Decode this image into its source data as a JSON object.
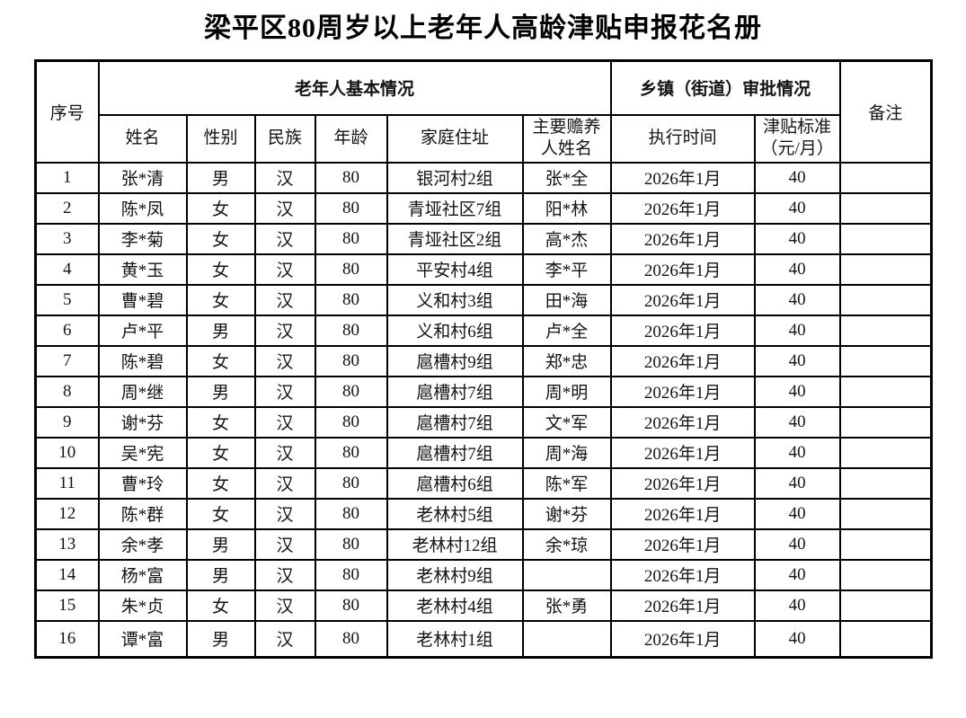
{
  "page": {
    "background": "#ffffff",
    "text_color": "#141414",
    "border_color": "#000000"
  },
  "title": "梁平区80周岁以上老年人高龄津贴申报花名册",
  "table": {
    "header": {
      "serial": "序号",
      "basic_group": "老年人基本情况",
      "approval_group": "乡镇（街道）审批情况",
      "remark": "备注",
      "columns": [
        {
          "id": "name",
          "label": "姓名"
        },
        {
          "id": "gender",
          "label": "性别"
        },
        {
          "id": "ethnicity",
          "label": "民族"
        },
        {
          "id": "age",
          "label": "年龄"
        },
        {
          "id": "address",
          "label": "家庭住址"
        },
        {
          "id": "supporter",
          "label": "主要赡养\n人姓名"
        },
        {
          "id": "exec_time",
          "label": "执行时间"
        },
        {
          "id": "standard",
          "label": "津贴标准\n（元/月）"
        }
      ]
    },
    "rows": [
      {
        "no": "1",
        "name": "张*清",
        "gender": "男",
        "ethnicity": "汉",
        "age": "80",
        "address": "银河村2组",
        "supporter": "张*全",
        "exec_time": "2026年1月",
        "standard": "40",
        "remark": ""
      },
      {
        "no": "2",
        "name": "陈*凤",
        "gender": "女",
        "ethnicity": "汉",
        "age": "80",
        "address": "青垭社区7组",
        "supporter": "阳*林",
        "exec_time": "2026年1月",
        "standard": "40",
        "remark": ""
      },
      {
        "no": "3",
        "name": "李*菊",
        "gender": "女",
        "ethnicity": "汉",
        "age": "80",
        "address": "青垭社区2组",
        "supporter": "高*杰",
        "exec_time": "2026年1月",
        "standard": "40",
        "remark": ""
      },
      {
        "no": "4",
        "name": "黄*玉",
        "gender": "女",
        "ethnicity": "汉",
        "age": "80",
        "address": "平安村4组",
        "supporter": "李*平",
        "exec_time": "2026年1月",
        "standard": "40",
        "remark": ""
      },
      {
        "no": "5",
        "name": "曹*碧",
        "gender": "女",
        "ethnicity": "汉",
        "age": "80",
        "address": "义和村3组",
        "supporter": "田*海",
        "exec_time": "2026年1月",
        "standard": "40",
        "remark": ""
      },
      {
        "no": "6",
        "name": "卢*平",
        "gender": "男",
        "ethnicity": "汉",
        "age": "80",
        "address": "义和村6组",
        "supporter": "卢*全",
        "exec_time": "2026年1月",
        "standard": "40",
        "remark": ""
      },
      {
        "no": "7",
        "name": "陈*碧",
        "gender": "女",
        "ethnicity": "汉",
        "age": "80",
        "address": "扈槽村9组",
        "supporter": "郑*忠",
        "exec_time": "2026年1月",
        "standard": "40",
        "remark": ""
      },
      {
        "no": "8",
        "name": "周*继",
        "gender": "男",
        "ethnicity": "汉",
        "age": "80",
        "address": "扈槽村7组",
        "supporter": "周*明",
        "exec_time": "2026年1月",
        "standard": "40",
        "remark": ""
      },
      {
        "no": "9",
        "name": "谢*芬",
        "gender": "女",
        "ethnicity": "汉",
        "age": "80",
        "address": "扈槽村7组",
        "supporter": "文*军",
        "exec_time": "2026年1月",
        "standard": "40",
        "remark": ""
      },
      {
        "no": "10",
        "name": "吴*宪",
        "gender": "女",
        "ethnicity": "汉",
        "age": "80",
        "address": "扈槽村7组",
        "supporter": "周*海",
        "exec_time": "2026年1月",
        "standard": "40",
        "remark": ""
      },
      {
        "no": "11",
        "name": "曹*玲",
        "gender": "女",
        "ethnicity": "汉",
        "age": "80",
        "address": "扈槽村6组",
        "supporter": "陈*军",
        "exec_time": "2026年1月",
        "standard": "40",
        "remark": ""
      },
      {
        "no": "12",
        "name": "陈*群",
        "gender": "女",
        "ethnicity": "汉",
        "age": "80",
        "address": "老林村5组",
        "supporter": "谢*芬",
        "exec_time": "2026年1月",
        "standard": "40",
        "remark": ""
      },
      {
        "no": "13",
        "name": "余*孝",
        "gender": "男",
        "ethnicity": "汉",
        "age": "80",
        "address": "老林村12组",
        "supporter": "余*琼",
        "exec_time": "2026年1月",
        "standard": "40",
        "remark": ""
      },
      {
        "no": "14",
        "name": "杨*富",
        "gender": "男",
        "ethnicity": "汉",
        "age": "80",
        "address": "老林村9组",
        "supporter": "",
        "exec_time": "2026年1月",
        "standard": "40",
        "remark": ""
      },
      {
        "no": "15",
        "name": "朱*贞",
        "gender": "女",
        "ethnicity": "汉",
        "age": "80",
        "address": "老林村4组",
        "supporter": "张*勇",
        "exec_time": "2026年1月",
        "standard": "40",
        "remark": ""
      },
      {
        "no": "16",
        "name": "谭*富",
        "gender": "男",
        "ethnicity": "汉",
        "age": "80",
        "address": "老林村1组",
        "supporter": "",
        "exec_time": "2026年1月",
        "standard": "40",
        "remark": ""
      }
    ]
  }
}
